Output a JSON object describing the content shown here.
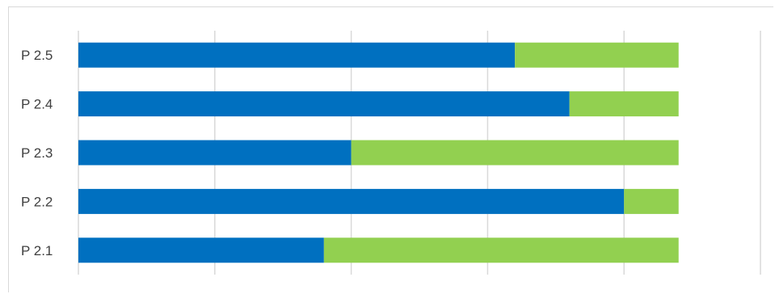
{
  "chart_data": {
    "type": "bar",
    "orientation": "horizontal",
    "stacked": true,
    "categories": [
      "P 2.5",
      "P 2.4",
      "P 2.3",
      "P 2.2",
      "P 2.1"
    ],
    "series": [
      {
        "values": [
          8,
          9,
          5,
          10,
          4.5
        ],
        "color": "#0070C0"
      },
      {
        "values": [
          3,
          2,
          6,
          1,
          6.5
        ],
        "color": "#92D050"
      }
    ],
    "xlim": [
      0,
      12.5
    ],
    "grid": true,
    "legend": "none"
  }
}
